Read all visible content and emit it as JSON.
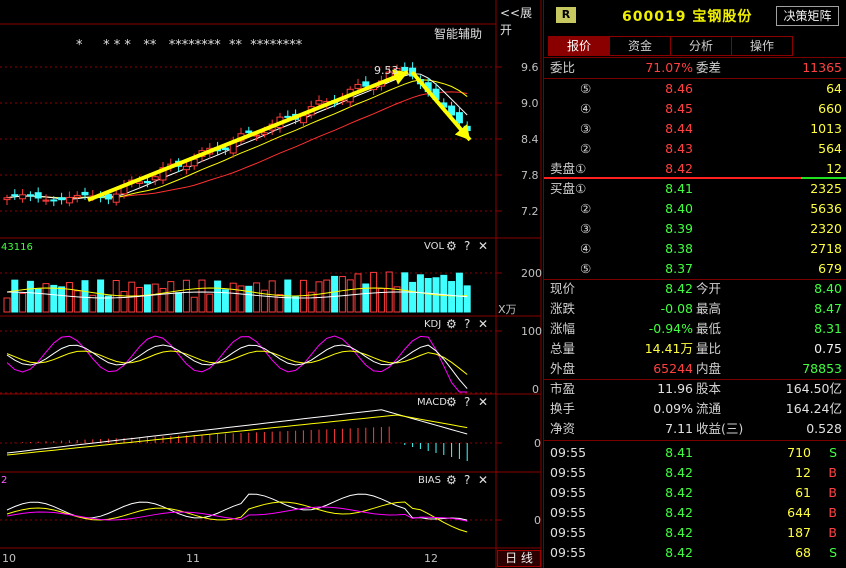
{
  "header": {
    "expand_label": "<<展开",
    "assist_label": "智能辅助",
    "asterisks": "*     * * *   **   ********  **  ********"
  },
  "main_chart": {
    "peak_label": "9.53",
    "y_ticks": [
      "9.6",
      "9.0",
      "8.4",
      "7.8",
      "7.2"
    ]
  },
  "vol_panel": {
    "left_value": "43116",
    "title": "VOL",
    "y_tick": "200",
    "unit": "X万"
  },
  "kdj_panel": {
    "title": "KDJ",
    "y_ticks": [
      "100",
      "0"
    ]
  },
  "macd_panel": {
    "title": "MACD",
    "y_tick": "0"
  },
  "bias_panel": {
    "left_value": "2",
    "title": "BIAS",
    "y_tick": "0"
  },
  "x_axis": {
    "labels": [
      "10",
      "11",
      "12"
    ],
    "period_button": "日 线"
  },
  "panel_icons": {
    "gear": "⚙",
    "help": "?",
    "close": "✕"
  },
  "quote": {
    "badge": "R",
    "code": "600019",
    "name": "宝钢股份",
    "decision_button": "决策矩阵",
    "tabs": [
      "报价",
      "资金",
      "分析",
      "操作"
    ],
    "weibi_label": "委比",
    "weibi_value": "71.07%",
    "weicha_label": "委差",
    "weicha_value": "11365",
    "sell_label": "卖盘①",
    "buy_label": "买盘①",
    "sell": [
      {
        "level": "⑤",
        "price": "8.46",
        "volume": "64"
      },
      {
        "level": "④",
        "price": "8.45",
        "volume": "660"
      },
      {
        "level": "③",
        "price": "8.44",
        "volume": "1013"
      },
      {
        "level": "②",
        "price": "8.43",
        "volume": "564"
      },
      {
        "level": "",
        "price": "8.42",
        "volume": "12"
      }
    ],
    "buy": [
      {
        "level": "",
        "price": "8.41",
        "volume": "2325"
      },
      {
        "level": "②",
        "price": "8.40",
        "volume": "5636"
      },
      {
        "level": "③",
        "price": "8.39",
        "volume": "2320"
      },
      {
        "level": "④",
        "price": "8.38",
        "volume": "2718"
      },
      {
        "level": "⑤",
        "price": "8.37",
        "volume": "679"
      }
    ],
    "stats": [
      {
        "l1": "现价",
        "v1": "8.42",
        "c1": "green",
        "l2": "今开",
        "v2": "8.40",
        "c2": "green"
      },
      {
        "l1": "涨跌",
        "v1": "-0.08",
        "c1": "green",
        "l2": "最高",
        "v2": "8.47",
        "c2": "green"
      },
      {
        "l1": "涨幅",
        "v1": "-0.94%",
        "c1": "green",
        "l2": "最低",
        "v2": "8.31",
        "c2": "green"
      },
      {
        "l1": "总量",
        "v1": "14.41万",
        "c1": "yellow",
        "l2": "量比",
        "v2": "0.75",
        "c2": "white"
      },
      {
        "l1": "外盘",
        "v1": "65244",
        "c1": "red",
        "l2": "内盘",
        "v2": "78853",
        "c2": "green"
      }
    ],
    "fundamentals": [
      {
        "l1": "市盈",
        "v1": "11.96",
        "l2": "股本",
        "v2": "164.50亿"
      },
      {
        "l1": "换手",
        "v1": "0.09%",
        "l2": "流通",
        "v2": "164.24亿"
      },
      {
        "l1": "净资",
        "v1": "7.11",
        "l2": "收益(三)",
        "v2": "0.528"
      }
    ],
    "ticks": [
      {
        "time": "09:55",
        "price": "8.41",
        "vol": "710",
        "side": "S"
      },
      {
        "time": "09:55",
        "price": "8.42",
        "vol": "12",
        "side": "B"
      },
      {
        "time": "09:55",
        "price": "8.42",
        "vol": "61",
        "side": "B"
      },
      {
        "time": "09:55",
        "price": "8.42",
        "vol": "644",
        "side": "B"
      },
      {
        "time": "09:55",
        "price": "8.42",
        "vol": "187",
        "side": "B"
      },
      {
        "time": "09:55",
        "price": "8.42",
        "vol": "68",
        "side": "S"
      }
    ]
  },
  "colors": {
    "up": "#ff3c3c",
    "down": "#40ffff",
    "ma5": "#ffffff",
    "ma10": "#ffff00",
    "ma20": "#ff3030",
    "arrow": "#ffff00",
    "border": "#8a0000",
    "grid": "#8a0000",
    "k": "#ffffff",
    "d": "#ffff00",
    "j": "#ff00ff"
  }
}
